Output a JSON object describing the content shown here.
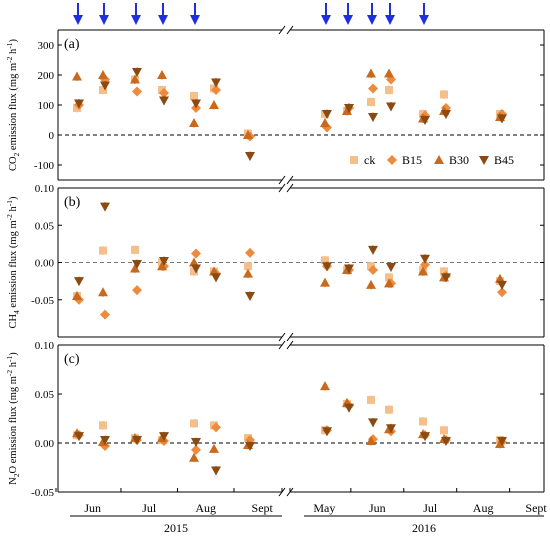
{
  "chart_data": [
    {
      "type": "scatter",
      "panel_label": "(a)",
      "ylabel_parts": [
        "CO",
        "2",
        " emission flux (mg m",
        "-2",
        " h",
        "-1",
        ")"
      ],
      "ylim": [
        -150,
        350
      ],
      "yticks": [
        "-100",
        "0",
        "100",
        "200",
        "300"
      ],
      "ytick_values": [
        -100,
        0,
        100,
        200,
        300
      ],
      "zero_line": true,
      "legend": {
        "placement": "bottom-right",
        "entries": [
          "ck",
          "B15",
          "B30",
          "B45"
        ]
      },
      "series": [
        {
          "name": "ck",
          "marker": "square",
          "color": "#f5bf8c",
          "points": [
            [
              1,
              90
            ],
            [
              2,
              150
            ],
            [
              3,
              185
            ],
            [
              4,
              150
            ],
            [
              5,
              130
            ],
            [
              6,
              155
            ],
            [
              7,
              5
            ],
            [
              11,
              70
            ],
            [
              12,
              80
            ],
            [
              13,
              110
            ],
            [
              14,
              150
            ],
            [
              15,
              70
            ],
            [
              16,
              135
            ],
            [
              17,
              70
            ]
          ]
        },
        {
          "name": "B15",
          "marker": "diamond",
          "color": "#ee8a3c",
          "points": [
            [
              1,
              100
            ],
            [
              2,
              185
            ],
            [
              3,
              145
            ],
            [
              4,
              140
            ],
            [
              5,
              90
            ],
            [
              6,
              150
            ],
            [
              7,
              -5
            ],
            [
              11,
              25
            ],
            [
              12,
              90
            ],
            [
              13,
              155
            ],
            [
              14,
              185
            ],
            [
              15,
              65
            ],
            [
              16,
              90
            ],
            [
              17,
              70
            ]
          ]
        },
        {
          "name": "B30",
          "marker": "triangle-up",
          "color": "#c8691e",
          "points": [
            [
              1,
              195
            ],
            [
              2,
              200
            ],
            [
              3,
              185
            ],
            [
              4,
              200
            ],
            [
              5,
              40
            ],
            [
              6,
              100
            ],
            [
              7,
              0
            ],
            [
              11,
              40
            ],
            [
              12,
              80
            ],
            [
              13,
              205
            ],
            [
              14,
              205
            ],
            [
              15,
              55
            ],
            [
              16,
              80
            ],
            [
              17,
              60
            ]
          ]
        },
        {
          "name": "B45",
          "marker": "triangle-down",
          "color": "#8b4a12",
          "points": [
            [
              1,
              105
            ],
            [
              2,
              165
            ],
            [
              3,
              210
            ],
            [
              4,
              115
            ],
            [
              5,
              105
            ],
            [
              6,
              175
            ],
            [
              7,
              -70
            ],
            [
              11,
              70
            ],
            [
              12,
              90
            ],
            [
              13,
              60
            ],
            [
              14,
              95
            ],
            [
              15,
              50
            ],
            [
              16,
              70
            ],
            [
              17,
              55
            ]
          ]
        }
      ]
    },
    {
      "type": "scatter",
      "panel_label": "(b)",
      "ylabel_parts": [
        "CH",
        "4",
        " emission flux (mg m",
        "-2",
        " h",
        "-1",
        ")"
      ],
      "ylim": [
        -0.1,
        0.1
      ],
      "yticks": [
        "-0.05",
        "0.00",
        "0.05",
        "0.10"
      ],
      "ytick_values": [
        -0.05,
        0,
        0.05,
        0.1
      ],
      "zero_line": true,
      "series": [
        {
          "name": "ck",
          "marker": "square",
          "color": "#f5bf8c",
          "points": [
            [
              1,
              -0.045
            ],
            [
              2,
              0.016
            ],
            [
              3,
              0.017
            ],
            [
              4,
              0.0
            ],
            [
              5,
              -0.012
            ],
            [
              6,
              -0.012
            ],
            [
              7,
              -0.005
            ],
            [
              11,
              0.003
            ],
            [
              12,
              -0.01
            ],
            [
              13,
              -0.005
            ],
            [
              14,
              -0.02
            ],
            [
              15,
              -0.01
            ],
            [
              16,
              -0.012
            ],
            [
              17,
              -0.025
            ]
          ]
        },
        {
          "name": "B15",
          "marker": "diamond",
          "color": "#ee8a3c",
          "points": [
            [
              1,
              -0.05
            ],
            [
              2,
              -0.07
            ],
            [
              3,
              -0.037
            ],
            [
              4,
              -0.005
            ],
            [
              5,
              0.012
            ],
            [
              6,
              -0.015
            ],
            [
              7,
              0.013
            ],
            [
              11,
              -0.005
            ],
            [
              12,
              -0.01
            ],
            [
              13,
              -0.01
            ],
            [
              14,
              -0.028
            ],
            [
              15,
              -0.003
            ],
            [
              16,
              -0.018
            ],
            [
              17,
              -0.04
            ]
          ]
        },
        {
          "name": "B30",
          "marker": "triangle-up",
          "color": "#c8691e",
          "points": [
            [
              1,
              -0.045
            ],
            [
              2,
              -0.04
            ],
            [
              3,
              -0.008
            ],
            [
              4,
              -0.005
            ],
            [
              5,
              0.0
            ],
            [
              6,
              -0.012
            ],
            [
              7,
              -0.015
            ],
            [
              11,
              -0.027
            ],
            [
              12,
              -0.01
            ],
            [
              13,
              -0.03
            ],
            [
              14,
              -0.028
            ],
            [
              15,
              -0.012
            ],
            [
              16,
              -0.02
            ],
            [
              17,
              -0.022
            ]
          ]
        },
        {
          "name": "B45",
          "marker": "triangle-down",
          "color": "#8b4a12",
          "points": [
            [
              1,
              -0.025
            ],
            [
              2,
              0.075
            ],
            [
              3,
              -0.002
            ],
            [
              4,
              0.002
            ],
            [
              5,
              -0.008
            ],
            [
              6,
              -0.02
            ],
            [
              7,
              -0.045
            ],
            [
              11,
              -0.005
            ],
            [
              12,
              -0.008
            ],
            [
              13,
              0.017
            ],
            [
              14,
              -0.006
            ],
            [
              15,
              0.005
            ],
            [
              16,
              -0.02
            ],
            [
              17,
              -0.03
            ]
          ]
        }
      ]
    },
    {
      "type": "scatter",
      "panel_label": "(c)",
      "ylabel_parts": [
        "N",
        "2",
        "O emission flux (mg m",
        "-2",
        " h",
        "-1",
        ")"
      ],
      "ylim": [
        -0.05,
        0.1
      ],
      "yticks": [
        "-0.05",
        "0.00",
        "0.05",
        "0.10"
      ],
      "ytick_values": [
        -0.05,
        0,
        0.05,
        0.1
      ],
      "zero_line": true,
      "series": [
        {
          "name": "ck",
          "marker": "square",
          "color": "#f5bf8c",
          "points": [
            [
              1,
              0.008
            ],
            [
              2,
              0.018
            ],
            [
              3,
              0.005
            ],
            [
              4,
              0.003
            ],
            [
              5,
              0.02
            ],
            [
              6,
              0.018
            ],
            [
              7,
              0.005
            ],
            [
              11,
              0.013
            ],
            [
              12,
              0.04
            ],
            [
              13,
              0.044
            ],
            [
              14,
              0.034
            ],
            [
              15,
              0.022
            ],
            [
              16,
              0.013
            ],
            [
              17,
              0.003
            ]
          ]
        },
        {
          "name": "B15",
          "marker": "diamond",
          "color": "#ee8a3c",
          "points": [
            [
              1,
              0.008
            ],
            [
              2,
              -0.003
            ],
            [
              3,
              0.003
            ],
            [
              4,
              0.002
            ],
            [
              5,
              -0.007
            ],
            [
              6,
              0.016
            ],
            [
              7,
              0.003
            ],
            [
              11,
              0.013
            ],
            [
              12,
              0.038
            ],
            [
              13,
              0.004
            ],
            [
              14,
              0.012
            ],
            [
              15,
              0.008
            ],
            [
              16,
              0.003
            ],
            [
              17,
              0.001
            ]
          ]
        },
        {
          "name": "B30",
          "marker": "triangle-up",
          "color": "#c8691e",
          "points": [
            [
              1,
              0.01
            ],
            [
              2,
              0.001
            ],
            [
              3,
              0.005
            ],
            [
              4,
              0.005
            ],
            [
              5,
              -0.015
            ],
            [
              6,
              -0.006
            ],
            [
              7,
              -0.002
            ],
            [
              11,
              0.058
            ],
            [
              12,
              0.041
            ],
            [
              13,
              0.002
            ],
            [
              14,
              0.014
            ],
            [
              15,
              0.009
            ],
            [
              16,
              0.004
            ],
            [
              17,
              -0.001
            ]
          ]
        },
        {
          "name": "B45",
          "marker": "triangle-down",
          "color": "#8b4a12",
          "points": [
            [
              1,
              0.007
            ],
            [
              2,
              0.003
            ],
            [
              3,
              0.003
            ],
            [
              4,
              0.007
            ],
            [
              5,
              0.001
            ],
            [
              6,
              -0.028
            ],
            [
              7,
              -0.003
            ],
            [
              11,
              0.012
            ],
            [
              12,
              0.036
            ],
            [
              13,
              0.021
            ],
            [
              14,
              0.015
            ],
            [
              15,
              0.007
            ],
            [
              16,
              0.002
            ],
            [
              17,
              0.002
            ]
          ]
        }
      ]
    }
  ],
  "x_axis": {
    "month_ticks": [
      {
        "label": "Jun",
        "pos": 1.5
      },
      {
        "label": "Jul",
        "pos": 3.5
      },
      {
        "label": "Aug",
        "pos": 5.5
      },
      {
        "label": "Sept",
        "pos": 7.5
      },
      {
        "label": "May",
        "pos": 10.5
      },
      {
        "label": "Jun",
        "pos": 12.5
      },
      {
        "label": "Jul",
        "pos": 14.5
      },
      {
        "label": "Aug",
        "pos": 16.5
      },
      {
        "label": "Sept",
        "pos": 18.5
      }
    ],
    "years": [
      {
        "label": "2015",
        "from": 0.2,
        "to": 8.2
      },
      {
        "label": "2016",
        "from": 9.2,
        "to": 18.8
      }
    ],
    "break_between": [
      8.2,
      9.2
    ]
  },
  "event_arrows": [
    1,
    2,
    3,
    4,
    5,
    11,
    12,
    13,
    14,
    15
  ],
  "colors": {
    "ck": "#f5bf8c",
    "B15": "#ee8a3c",
    "B30": "#c8691e",
    "B45": "#8b4a12",
    "arrow": "#1f2fe0"
  }
}
